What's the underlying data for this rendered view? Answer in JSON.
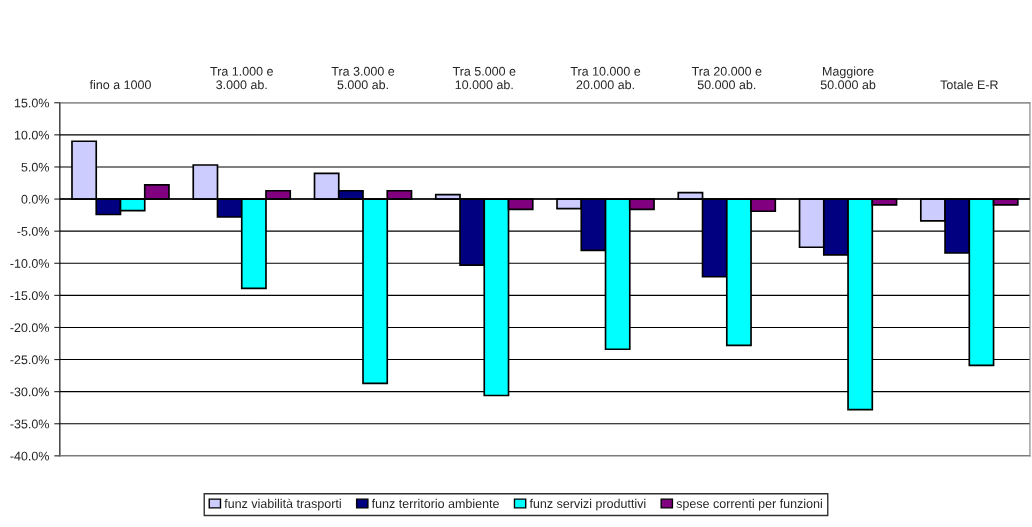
{
  "chart_data": {
    "type": "bar",
    "categories": [
      "fino a 1000",
      "Tra 1.000 e\n3.000 ab.",
      "Tra 3.000 e\n5.000 ab.",
      "Tra 5.000 e\n10.000 ab.",
      "Tra 10.000 e\n20.000 ab.",
      "Tra 20.000 e\n50.000 ab.",
      "Maggiore\n50.000 ab",
      "Totale E-R"
    ],
    "series": [
      {
        "name": "funz viabilità trasporti",
        "color": "#ccccff",
        "values": [
          9.0,
          5.3,
          4.0,
          0.7,
          -1.5,
          1.0,
          -7.5,
          -3.4
        ]
      },
      {
        "name": "funz territorio ambiente",
        "color": "#000080",
        "values": [
          -2.4,
          -2.8,
          1.3,
          -10.3,
          -8.0,
          -12.1,
          -8.7,
          -8.4
        ]
      },
      {
        "name": "funz servizi produttivi",
        "color": "#00ffff",
        "values": [
          -1.8,
          -13.9,
          -28.7,
          -30.6,
          -23.4,
          -22.8,
          -32.8,
          -25.9
        ]
      },
      {
        "name": "spese correnti per funzioni",
        "color": "#800080",
        "values": [
          2.2,
          1.3,
          1.3,
          -1.6,
          -1.6,
          -1.9,
          -0.9,
          -0.9
        ]
      }
    ],
    "ylim": [
      -40,
      15
    ],
    "yticks": [
      {
        "value": -40,
        "label": "-40.0%"
      },
      {
        "value": -35,
        "label": "-35.0%"
      },
      {
        "value": -30,
        "label": "-30.0%"
      },
      {
        "value": -25,
        "label": "-25.0%"
      },
      {
        "value": -20,
        "label": "-20.0%"
      },
      {
        "value": -15,
        "label": "-15.0%"
      },
      {
        "value": -10,
        "label": "-10.0%"
      },
      {
        "value": -5,
        "label": "-5.0%"
      },
      {
        "value": 0,
        "label": "0.0%"
      },
      {
        "value": 5,
        "label": "5.0%"
      },
      {
        "value": 10,
        "label": "10.0%"
      },
      {
        "value": 15,
        "label": "15.0%"
      }
    ],
    "grid": "y",
    "legend": "bottom"
  }
}
